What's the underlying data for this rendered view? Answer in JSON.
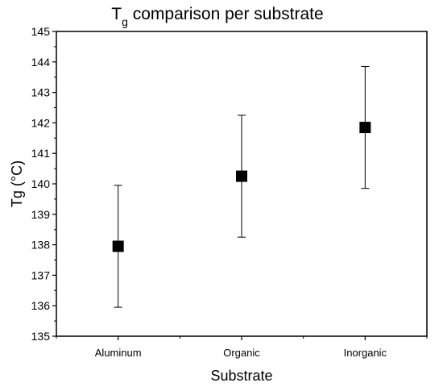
{
  "chart_data": {
    "type": "scatter",
    "title": "T",
    "title_subscript": "g",
    "title_suffix": " comparison per substrate",
    "xlabel": "Substrate",
    "ylabel": "Tg (°C)",
    "categories": [
      "Aluminum",
      "Organic",
      "Inorganic"
    ],
    "series": [
      {
        "values": [
          137.95,
          140.25,
          141.85
        ],
        "error": [
          2.0,
          2.0,
          2.0
        ],
        "marker": "square",
        "color": "#000000"
      }
    ],
    "ylim": [
      135,
      145
    ],
    "yticks": [
      135,
      136,
      137,
      138,
      139,
      140,
      141,
      142,
      143,
      144,
      145
    ],
    "grid": false,
    "legend": false
  }
}
